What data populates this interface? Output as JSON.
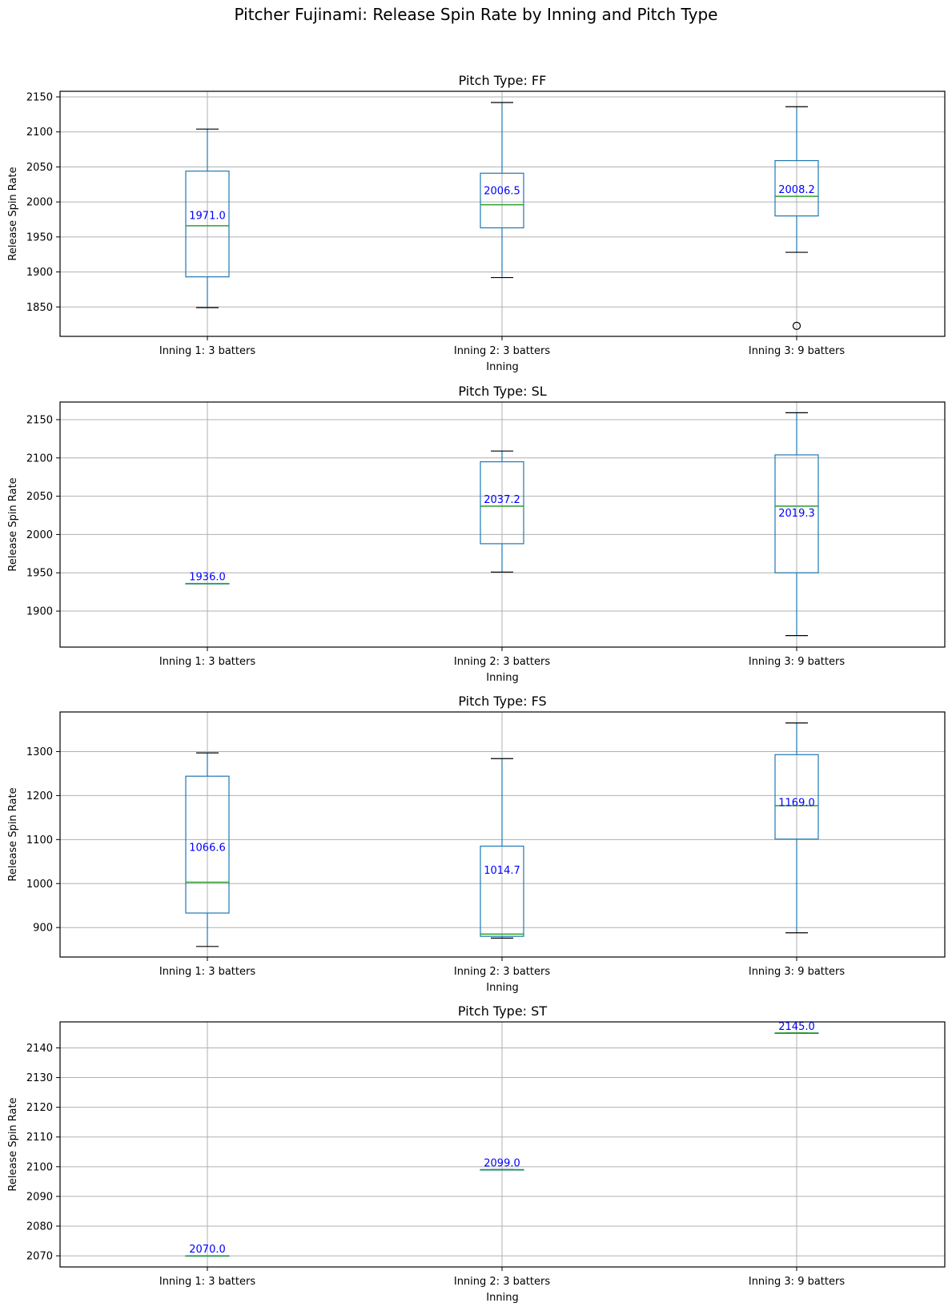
{
  "chart_data": {
    "type": "box",
    "title": "Pitcher Fujinami: Release Spin Rate by Inning and Pitch Type",
    "categories": [
      "Inning 1: 3 batters",
      "Inning 2: 3 batters",
      "Inning 3: 9 batters"
    ],
    "xlabel": "Inning",
    "ylabel": "Release Spin Rate",
    "grid": true,
    "colors": {
      "box": "#1f77b4",
      "median": "#2ca02c",
      "whisker_cap": "#000000",
      "mean_label": "#0000ff",
      "grid": "#b0b0b0"
    },
    "panels": [
      {
        "subtitle": "Pitch Type: FF",
        "ylim": [
          1808,
          2158
        ],
        "yticks": [
          1850,
          1900,
          1950,
          2000,
          2050,
          2100,
          2150
        ],
        "show_xlabel": true,
        "boxes": [
          {
            "whislo": 1849,
            "q1": 1893,
            "med": 1966,
            "q3": 2044,
            "whishi": 2104,
            "mean": 1971.0,
            "mean_label": "1971.0",
            "fliers": []
          },
          {
            "whislo": 1892,
            "q1": 1963,
            "med": 1996,
            "q3": 2041,
            "whishi": 2142,
            "mean": 2006.5,
            "mean_label": "2006.5",
            "fliers": []
          },
          {
            "whislo": 1928,
            "q1": 1980,
            "med": 2008,
            "q3": 2059,
            "whishi": 2136,
            "mean": 2008.2,
            "mean_label": "2008.2",
            "fliers": [
              1823
            ]
          }
        ]
      },
      {
        "subtitle": "Pitch Type: SL",
        "ylim": [
          1853,
          2173
        ],
        "yticks": [
          1900,
          1950,
          2000,
          2050,
          2100,
          2150
        ],
        "show_xlabel": true,
        "boxes": [
          {
            "whislo": 1936,
            "q1": 1936,
            "med": 1936,
            "q3": 1936,
            "whishi": 1936,
            "mean": 1936.0,
            "mean_label": "1936.0",
            "fliers": []
          },
          {
            "whislo": 1951,
            "q1": 1988,
            "med": 2037,
            "q3": 2095,
            "whishi": 2109,
            "mean": 2037.2,
            "mean_label": "2037.2",
            "fliers": []
          },
          {
            "whislo": 1868,
            "q1": 1950,
            "med": 2037,
            "q3": 2104,
            "whishi": 2159,
            "mean": 2019.3,
            "mean_label": "2019.3",
            "fliers": []
          }
        ]
      },
      {
        "subtitle": "Pitch Type: FS",
        "ylim": [
          833,
          1390
        ],
        "yticks": [
          900,
          1000,
          1100,
          1200,
          1300
        ],
        "show_xlabel": true,
        "boxes": [
          {
            "whislo": 857,
            "q1": 933,
            "med": 1003,
            "q3": 1244,
            "whishi": 1297,
            "mean": 1066.6,
            "mean_label": "1066.6",
            "fliers": []
          },
          {
            "whislo": 876,
            "q1": 880,
            "med": 885,
            "q3": 1085,
            "whishi": 1284,
            "mean": 1014.7,
            "mean_label": "1014.7",
            "fliers": []
          },
          {
            "whislo": 888,
            "q1": 1101,
            "med": 1177,
            "q3": 1293,
            "whishi": 1365,
            "mean": 1169.0,
            "mean_label": "1169.0",
            "fliers": []
          }
        ]
      },
      {
        "subtitle": "Pitch Type: ST",
        "ylim": [
          2066.25,
          2148.75
        ],
        "yticks": [
          2070,
          2080,
          2090,
          2100,
          2110,
          2120,
          2130,
          2140
        ],
        "show_xlabel": true,
        "boxes": [
          {
            "whislo": 2070,
            "q1": 2070,
            "med": 2070,
            "q3": 2070,
            "whishi": 2070,
            "mean": 2070.0,
            "mean_label": "2070.0",
            "fliers": []
          },
          {
            "whislo": 2099,
            "q1": 2099,
            "med": 2099,
            "q3": 2099,
            "whishi": 2099,
            "mean": 2099.0,
            "mean_label": "2099.0",
            "fliers": []
          },
          {
            "whislo": 2145,
            "q1": 2145,
            "med": 2145,
            "q3": 2145,
            "whishi": 2145,
            "mean": 2145.0,
            "mean_label": "2145.0",
            "fliers": []
          }
        ]
      }
    ]
  }
}
